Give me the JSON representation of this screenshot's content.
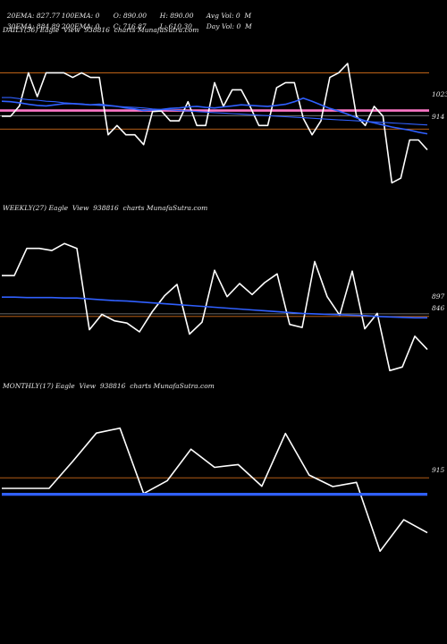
{
  "header": {
    "row1": [
      "20EMA: 827.77",
      "100EMA: 0",
      "O: 890.00",
      "H: 890.00",
      "Avg Vol: 0  M"
    ],
    "row2": [
      "30EMA: 884.89",
      "200EMA: 0",
      "C: 716.87",
      "L: 610.30",
      "Day Vol: 0  M"
    ]
  },
  "colors": {
    "background": "#000000",
    "price": "#ffffff",
    "ema_blue": "#3060ff",
    "ref_orange": "#cc6a1a",
    "ref_pink": "#ff78c8",
    "ref_gray": "#888888"
  },
  "chart_data": [
    {
      "type": "line",
      "title": "DAILY(36) Eagle  View  938816  charts MunafaSutra.com",
      "price_labels": [
        "1023",
        "914"
      ],
      "series": [
        {
          "values": [
            939,
            939,
            959,
            1023,
            977,
            1023,
            1023,
            1023,
            1014,
            1023,
            1014,
            1014,
            903,
            921,
            903,
            903,
            884,
            948,
            949,
            930,
            930,
            967,
            921,
            921,
            1004,
            958,
            990,
            990,
            958,
            921,
            921,
            994,
            1004,
            1004,
            935,
            903,
            930,
            1014,
            1023,
            1041,
            939,
            921,
            958,
            939,
            810,
            819,
            893,
            893,
            874
          ]
        },
        {
          "values": [
            975,
            975,
            973,
            971,
            970,
            968,
            967,
            965,
            964,
            963,
            961,
            960,
            959,
            958,
            957,
            956,
            955,
            953,
            952,
            951,
            950,
            949,
            948,
            947,
            946,
            945,
            944,
            943,
            942,
            941,
            940,
            939,
            938,
            937,
            936,
            935,
            934,
            933,
            932,
            931,
            930,
            929,
            928,
            927,
            926,
            925,
            924,
            923,
            922
          ]
        },
        {
          "values": [
            968,
            967,
            965,
            962,
            960,
            959,
            961,
            963,
            963,
            962,
            961,
            962,
            960,
            958,
            955,
            953,
            950,
            951,
            952,
            954,
            955,
            957,
            958,
            956,
            955,
            957,
            959,
            961,
            960,
            959,
            958,
            960,
            962,
            967,
            974,
            968,
            961,
            954,
            949,
            943,
            936,
            930,
            926,
            922,
            918,
            915,
            912,
            908,
            905
          ]
        }
      ],
      "ylim": [
        790,
        1060
      ],
      "levels": [
        1023,
        914,
        940,
        950
      ]
    },
    {
      "type": "line",
      "title": "WEEKLY(27) Eagle  View  938816  charts MunafaSutra.com",
      "price_labels": [
        "897",
        "846"
      ],
      "series": [
        {
          "values": [
            1008,
            1008,
            1070,
            1070,
            1065,
            1081,
            1070,
            885,
            920,
            905,
            900,
            880,
            925,
            962,
            988,
            875,
            902,
            1020,
            960,
            990,
            965,
            992,
            1012,
            897,
            890,
            1040,
            960,
            918,
            1018,
            887,
            922,
            792,
            800,
            870,
            840
          ]
        },
        {
          "values": [
            959,
            959,
            958,
            958,
            958,
            957,
            957,
            955,
            953,
            951,
            950,
            948,
            946,
            944,
            942,
            940,
            938,
            936,
            934,
            932,
            930,
            928,
            926,
            924,
            922,
            921,
            920,
            919,
            918,
            917,
            915,
            914,
            913,
            912,
            912
          ]
        }
      ],
      "ylim": [
        760,
        1110
      ],
      "levels": [
        921,
        915
      ]
    },
    {
      "type": "line",
      "title": "MONTHLY(17) Eagle  View  938816  charts MunafaSutra.com",
      "price_labels": [
        "915"
      ],
      "series": [
        {
          "values": [
            935,
            935,
            935,
            1012,
            1093,
            1107,
            920,
            957,
            1047,
            995,
            1003,
            941,
            1092,
            973,
            940,
            952,
            755,
            845,
            808
          ]
        },
        {
          "values": [
            918,
            918,
            918,
            918,
            918,
            918,
            918,
            918,
            918,
            918,
            918,
            918,
            918,
            918,
            918,
            918,
            918,
            918,
            918
          ]
        }
      ],
      "ylim": [
        720,
        1160
      ],
      "levels": [
        965
      ]
    }
  ]
}
